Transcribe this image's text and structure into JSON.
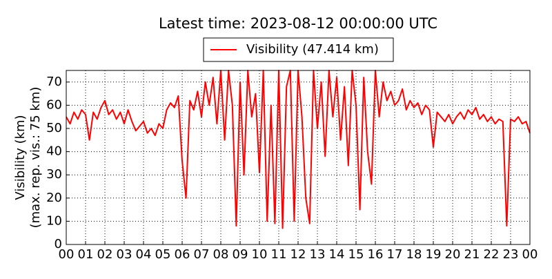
{
  "chart_data": {
    "type": "line",
    "title": "Latest time: 2023-08-12 00:00:00 UTC",
    "y_label_lines": [
      "Visibility (km)",
      "(max. rep. vis.: 75 km)"
    ],
    "x": [
      0,
      0.2,
      0.4,
      0.6,
      0.8,
      1,
      1.2,
      1.4,
      1.6,
      1.8,
      2,
      2.2,
      2.4,
      2.6,
      2.8,
      3,
      3.2,
      3.4,
      3.6,
      3.8,
      4,
      4.2,
      4.4,
      4.6,
      4.8,
      5,
      5.2,
      5.4,
      5.6,
      5.8,
      6,
      6.2,
      6.4,
      6.6,
      6.8,
      7,
      7.2,
      7.4,
      7.6,
      7.8,
      8,
      8.2,
      8.4,
      8.6,
      8.8,
      9,
      9.2,
      9.4,
      9.6,
      9.8,
      10,
      10.2,
      10.4,
      10.6,
      10.8,
      11,
      11.2,
      11.4,
      11.6,
      11.8,
      12,
      12.2,
      12.4,
      12.6,
      12.8,
      13,
      13.2,
      13.4,
      13.6,
      13.8,
      14,
      14.2,
      14.4,
      14.6,
      14.8,
      15,
      15.2,
      15.4,
      15.6,
      15.8,
      16,
      16.2,
      16.4,
      16.6,
      16.8,
      17,
      17.2,
      17.4,
      17.6,
      17.8,
      18,
      18.2,
      18.4,
      18.6,
      18.8,
      19,
      19.2,
      19.4,
      19.6,
      19.8,
      20,
      20.2,
      20.4,
      20.6,
      20.8,
      21,
      21.2,
      21.4,
      21.6,
      21.8,
      22,
      22.2,
      22.4,
      22.6,
      22.8,
      23,
      23.2,
      23.4,
      23.6,
      23.8,
      24
    ],
    "series": [
      {
        "name": "Visibility (47.414 km)",
        "color": "#ff0000",
        "values": [
          55,
          52,
          57,
          54,
          58,
          56,
          45,
          57,
          54,
          59,
          62,
          56,
          58,
          54,
          57,
          52,
          58,
          53,
          49,
          51,
          53,
          48,
          50,
          47,
          52,
          50,
          58,
          61,
          59,
          64,
          36,
          20,
          62,
          58,
          66,
          55,
          70,
          60,
          72,
          52,
          75,
          45,
          75,
          60,
          8,
          70,
          30,
          75,
          55,
          65,
          31,
          75,
          10,
          60,
          9,
          75,
          7,
          68,
          75,
          10,
          75,
          55,
          20,
          9,
          75,
          50,
          70,
          38,
          75,
          55,
          72,
          45,
          68,
          34,
          75,
          60,
          15,
          72,
          40,
          26,
          75,
          55,
          70,
          62,
          66,
          60,
          62,
          67,
          58,
          62,
          59,
          61,
          56,
          60,
          58,
          42,
          57,
          55,
          53,
          56,
          52,
          55,
          57,
          54,
          58,
          56,
          59,
          54,
          56,
          53,
          55,
          52,
          54,
          53,
          8,
          54,
          53,
          55,
          52,
          53,
          48
        ]
      }
    ],
    "xlim": [
      0,
      24
    ],
    "ylim": [
      0,
      75
    ],
    "xticks": [
      {
        "value": 0,
        "label": "00"
      },
      {
        "value": 1,
        "label": "01"
      },
      {
        "value": 2,
        "label": "02"
      },
      {
        "value": 3,
        "label": "03"
      },
      {
        "value": 4,
        "label": "04"
      },
      {
        "value": 5,
        "label": "05"
      },
      {
        "value": 6,
        "label": "06"
      },
      {
        "value": 7,
        "label": "07"
      },
      {
        "value": 8,
        "label": "08"
      },
      {
        "value": 9,
        "label": "09"
      },
      {
        "value": 10,
        "label": "10"
      },
      {
        "value": 11,
        "label": "11"
      },
      {
        "value": 12,
        "label": "12"
      },
      {
        "value": 13,
        "label": "13"
      },
      {
        "value": 14,
        "label": "14"
      },
      {
        "value": 15,
        "label": "15"
      },
      {
        "value": 16,
        "label": "16"
      },
      {
        "value": 17,
        "label": "17"
      },
      {
        "value": 18,
        "label": "18"
      },
      {
        "value": 19,
        "label": "19"
      },
      {
        "value": 20,
        "label": "20"
      },
      {
        "value": 21,
        "label": "21"
      },
      {
        "value": 22,
        "label": "22"
      },
      {
        "value": 23,
        "label": "23"
      },
      {
        "value": 24,
        "label": "00"
      }
    ],
    "yticks": [
      0,
      10,
      20,
      30,
      40,
      50,
      60,
      70
    ],
    "grid": true,
    "legend": "top"
  }
}
